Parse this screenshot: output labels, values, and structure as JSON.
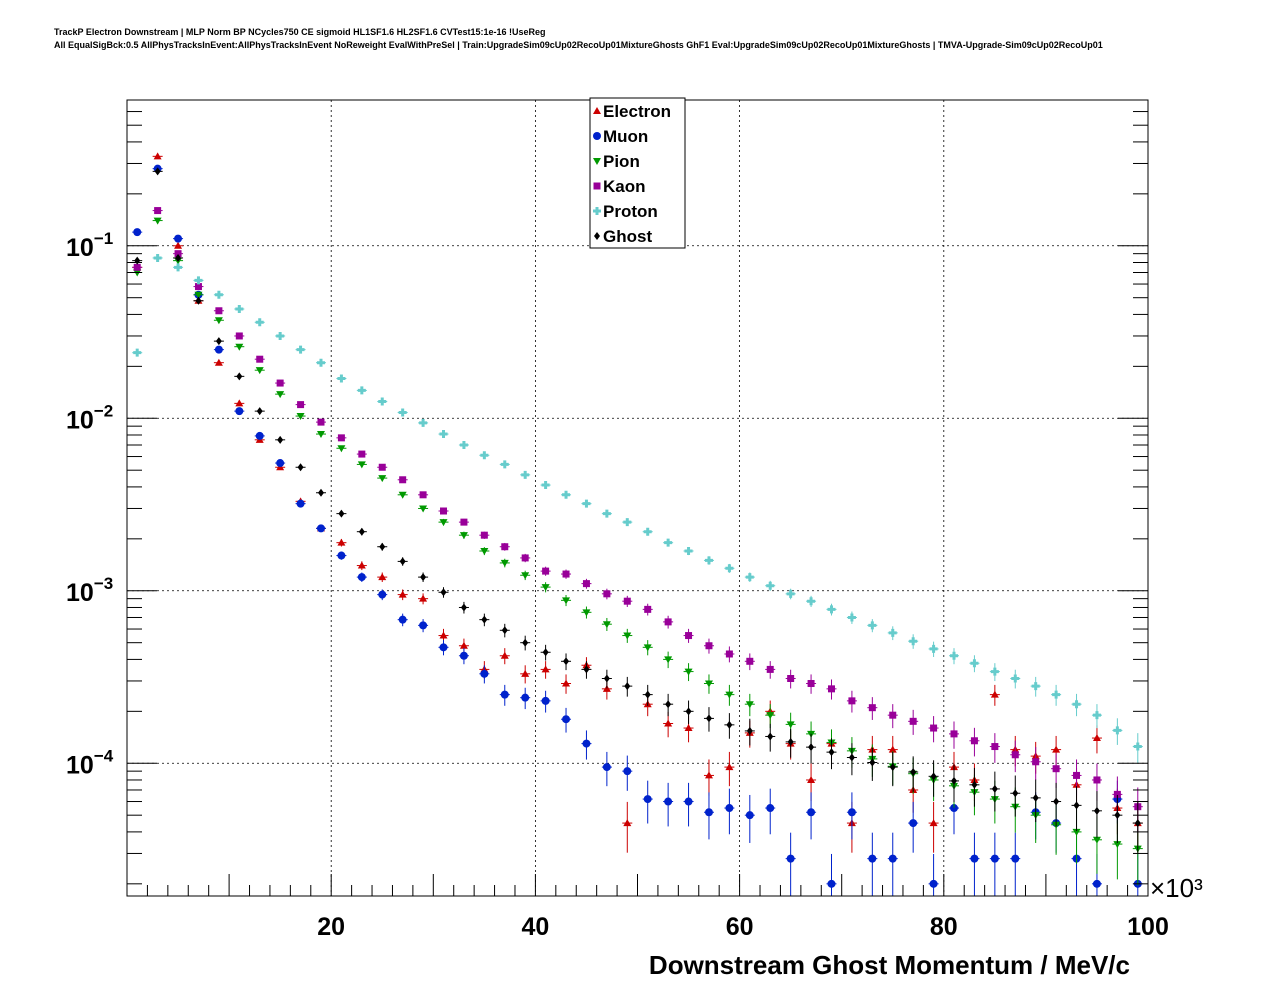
{
  "header": {
    "line1": "TrackP Electron Downstream | MLP Norm BP NCycles750 CE sigmoid HL1SF1.6 HL2SF1.6 CVTest15:1e-16 !UseReg",
    "line2": "All EqualSigBck:0.5 AllPhysTracksInEvent:AllPhysTracksInEvent NoReweight EvalWithPreSel | Train:UpgradeSim09cUp02RecoUp01MixtureGhosts GhF1 Eval:UpgradeSim09cUp02RecoUp01MixtureGhosts | TMVA-Upgrade-Sim09cUp02RecoUp01"
  },
  "chart_data": {
    "type": "scatter",
    "xlabel": "Downstream Ghost Momentum / MeV/c",
    "x_multiplier_label": "×10³",
    "xlim": [
      0,
      100
    ],
    "ylim": [
      1.7e-05,
      0.7
    ],
    "log_y": true,
    "grid": true,
    "legend_position": "top-center",
    "x_ticks": [
      20,
      40,
      60,
      80,
      100
    ],
    "y_ticks": [
      {
        "value": 0.1,
        "base": "10",
        "exp": "−1"
      },
      {
        "value": 0.01,
        "base": "10",
        "exp": "−2"
      },
      {
        "value": 0.001,
        "base": "10",
        "exp": "−3"
      },
      {
        "value": 0.0001,
        "base": "10",
        "exp": "−4"
      }
    ],
    "series": [
      {
        "name": "Electron",
        "color": "#cc0000",
        "marker": "triangle-up",
        "x": [
          1,
          3,
          5,
          7,
          9,
          11,
          13,
          15,
          17,
          19,
          21,
          23,
          25,
          27,
          29,
          31,
          33,
          35,
          37,
          39,
          41,
          43,
          45,
          47,
          49,
          51,
          53,
          55,
          57,
          59,
          61,
          63,
          65,
          67,
          69,
          71,
          73,
          75,
          77,
          79,
          81,
          83,
          85,
          87,
          89,
          91,
          93,
          95,
          97,
          99
        ],
        "y": [
          0.075,
          0.33,
          0.1,
          0.048,
          0.021,
          0.0122,
          0.0075,
          0.0052,
          0.0033,
          0.0023,
          0.0019,
          0.0014,
          0.0012,
          0.00095,
          0.0009,
          0.00055,
          0.00048,
          0.00035,
          0.00042,
          0.00033,
          0.00035,
          0.00029,
          0.00037,
          0.00027,
          4.5e-05,
          0.00022,
          0.00017,
          0.00016,
          8.5e-05,
          9.5e-05,
          0.00015,
          0.0002,
          0.00013,
          8e-05,
          0.00013,
          4.5e-05,
          0.00012,
          0.00012,
          7e-05,
          4.5e-05,
          9.5e-05,
          8e-05,
          0.00025,
          0.00012,
          0.00011,
          0.00012,
          7.5e-05,
          0.00014,
          5.5e-05,
          4.5e-05
        ]
      },
      {
        "name": "Muon",
        "color": "#0022cc",
        "marker": "circle",
        "x": [
          1,
          3,
          5,
          7,
          9,
          11,
          13,
          15,
          17,
          19,
          21,
          23,
          25,
          27,
          29,
          31,
          33,
          35,
          37,
          39,
          41,
          43,
          45,
          47,
          49,
          51,
          53,
          55,
          57,
          59,
          61,
          63,
          65,
          67,
          69,
          71,
          73,
          75,
          77,
          79,
          81,
          83,
          85,
          87,
          89,
          91,
          93,
          95,
          97,
          99
        ],
        "y": [
          0.12,
          0.28,
          0.11,
          0.052,
          0.025,
          0.011,
          0.0079,
          0.0055,
          0.0032,
          0.0023,
          0.0016,
          0.0012,
          0.00095,
          0.00068,
          0.00063,
          0.00047,
          0.00042,
          0.00033,
          0.00025,
          0.00024,
          0.00023,
          0.00018,
          0.00013,
          9.5e-05,
          9e-05,
          6.2e-05,
          6e-05,
          6e-05,
          5.2e-05,
          5.5e-05,
          5e-05,
          5.5e-05,
          2.8e-05,
          5.2e-05,
          2e-05,
          5.2e-05,
          2.8e-05,
          2.8e-05,
          4.5e-05,
          2e-05,
          5.5e-05,
          2.8e-05,
          2.8e-05,
          2.8e-05,
          5.2e-05,
          4.5e-05,
          2.8e-05,
          2e-05,
          6.2e-05,
          2e-05
        ]
      },
      {
        "name": "Pion",
        "color": "#009900",
        "marker": "triangle-down",
        "x": [
          1,
          3,
          5,
          7,
          9,
          11,
          13,
          15,
          17,
          19,
          21,
          23,
          25,
          27,
          29,
          31,
          33,
          35,
          37,
          39,
          41,
          43,
          45,
          47,
          49,
          51,
          53,
          55,
          57,
          59,
          61,
          63,
          65,
          67,
          69,
          71,
          73,
          75,
          77,
          79,
          81,
          83,
          85,
          87,
          89,
          91,
          93,
          95,
          97,
          99
        ],
        "y": [
          0.07,
          0.14,
          0.082,
          0.052,
          0.037,
          0.026,
          0.019,
          0.0138,
          0.0103,
          0.0081,
          0.0067,
          0.0054,
          0.0045,
          0.0036,
          0.003,
          0.0025,
          0.0021,
          0.0017,
          0.00145,
          0.00123,
          0.00105,
          0.00088,
          0.00075,
          0.00064,
          0.00055,
          0.00047,
          0.0004,
          0.00034,
          0.00029,
          0.00025,
          0.00022,
          0.00019,
          0.000168,
          0.000148,
          0.000132,
          0.000118,
          0.000106,
          9.6e-05,
          8.7e-05,
          8e-05,
          7.4e-05,
          6.8e-05,
          6.2e-05,
          5.6e-05,
          5e-05,
          4.4e-05,
          4e-05,
          3.6e-05,
          3.4e-05,
          3.2e-05
        ]
      },
      {
        "name": "Kaon",
        "color": "#990099",
        "marker": "square",
        "x": [
          1,
          3,
          5,
          7,
          9,
          11,
          13,
          15,
          17,
          19,
          21,
          23,
          25,
          27,
          29,
          31,
          33,
          35,
          37,
          39,
          41,
          43,
          45,
          47,
          49,
          51,
          53,
          55,
          57,
          59,
          61,
          63,
          65,
          67,
          69,
          71,
          73,
          75,
          77,
          79,
          81,
          83,
          85,
          87,
          89,
          91,
          93,
          95,
          97,
          99
        ],
        "y": [
          0.075,
          0.16,
          0.09,
          0.058,
          0.042,
          0.03,
          0.022,
          0.016,
          0.012,
          0.0095,
          0.0077,
          0.0062,
          0.0052,
          0.0044,
          0.0036,
          0.0029,
          0.0025,
          0.0021,
          0.0018,
          0.00155,
          0.0013,
          0.00125,
          0.0011,
          0.00096,
          0.00087,
          0.00078,
          0.00066,
          0.00055,
          0.00048,
          0.00043,
          0.00039,
          0.00035,
          0.00031,
          0.00029,
          0.00027,
          0.00023,
          0.00021,
          0.00019,
          0.000175,
          0.00016,
          0.000148,
          0.000135,
          0.000125,
          0.000112,
          0.000102,
          9.3e-05,
          8.5e-05,
          8e-05,
          6.6e-05,
          5.6e-05
        ]
      },
      {
        "name": "Proton",
        "color": "#66cccc",
        "marker": "cross",
        "x": [
          1,
          3,
          5,
          7,
          9,
          11,
          13,
          15,
          17,
          19,
          21,
          23,
          25,
          27,
          29,
          31,
          33,
          35,
          37,
          39,
          41,
          43,
          45,
          47,
          49,
          51,
          53,
          55,
          57,
          59,
          61,
          63,
          65,
          67,
          69,
          71,
          73,
          75,
          77,
          79,
          81,
          83,
          85,
          87,
          89,
          91,
          93,
          95,
          97,
          99
        ],
        "y": [
          0.024,
          0.085,
          0.075,
          0.063,
          0.052,
          0.043,
          0.036,
          0.03,
          0.025,
          0.021,
          0.017,
          0.0145,
          0.0125,
          0.0108,
          0.0094,
          0.0081,
          0.007,
          0.0061,
          0.0054,
          0.0047,
          0.0041,
          0.0036,
          0.0032,
          0.0028,
          0.0025,
          0.0022,
          0.0019,
          0.0017,
          0.0015,
          0.00135,
          0.0012,
          0.00107,
          0.00096,
          0.00087,
          0.00078,
          0.0007,
          0.00063,
          0.00057,
          0.00051,
          0.00046,
          0.00042,
          0.00038,
          0.00034,
          0.00031,
          0.00028,
          0.00025,
          0.00022,
          0.00019,
          0.000155,
          0.000125
        ]
      },
      {
        "name": "Ghost",
        "color": "#000000",
        "marker": "diamond",
        "x": [
          1,
          3,
          5,
          7,
          9,
          11,
          13,
          15,
          17,
          19,
          21,
          23,
          25,
          27,
          29,
          31,
          33,
          35,
          37,
          39,
          41,
          43,
          45,
          47,
          49,
          51,
          53,
          55,
          57,
          59,
          61,
          63,
          65,
          67,
          69,
          71,
          73,
          75,
          77,
          79,
          81,
          83,
          85,
          87,
          89,
          91,
          93,
          95,
          97,
          99
        ],
        "y": [
          0.082,
          0.27,
          0.085,
          0.048,
          0.028,
          0.0175,
          0.011,
          0.0075,
          0.0052,
          0.0037,
          0.0028,
          0.0022,
          0.0018,
          0.00148,
          0.0012,
          0.00098,
          0.0008,
          0.00068,
          0.00059,
          0.0005,
          0.00044,
          0.00039,
          0.00035,
          0.00031,
          0.00028,
          0.00025,
          0.00022,
          0.0002,
          0.000182,
          0.000167,
          0.000154,
          0.000143,
          0.000133,
          0.000124,
          0.000116,
          0.000108,
          0.000101,
          9.5e-05,
          8.9e-05,
          8.4e-05,
          7.9e-05,
          7.5e-05,
          7.1e-05,
          6.7e-05,
          6.3e-05,
          6e-05,
          5.7e-05,
          5.3e-05,
          5e-05,
          4.5e-05
        ]
      }
    ]
  }
}
